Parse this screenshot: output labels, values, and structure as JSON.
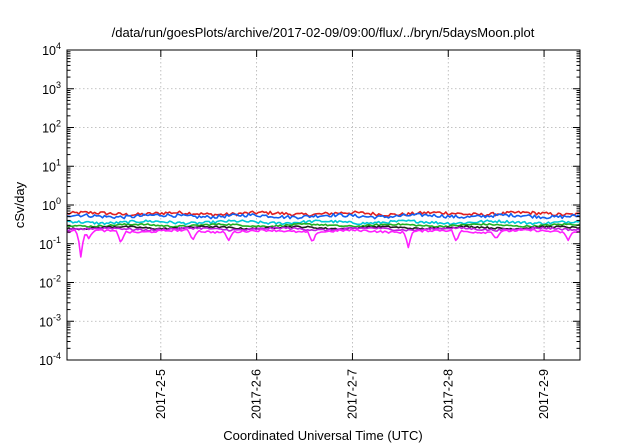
{
  "chart_data": {
    "type": "line",
    "title": "/data/run/goesPlots/archive/2017-02-09/09:00/flux/../bryn/5daysMoon.plot",
    "xlabel": "Coordinated Universal Time (UTC)",
    "ylabel": "cSv/day",
    "y_scale": "log",
    "ylim": [
      0.0001,
      10000
    ],
    "y_ticks": [
      {
        "value": 0.0001,
        "base": "10",
        "exp": "-4"
      },
      {
        "value": 0.001,
        "base": "10",
        "exp": "-3"
      },
      {
        "value": 0.01,
        "base": "10",
        "exp": "-2"
      },
      {
        "value": 0.1,
        "base": "10",
        "exp": "-1"
      },
      {
        "value": 1,
        "base": "10",
        "exp": "0"
      },
      {
        "value": 10,
        "base": "10",
        "exp": "1"
      },
      {
        "value": 100,
        "base": "10",
        "exp": "2"
      },
      {
        "value": 1000,
        "base": "10",
        "exp": "3"
      },
      {
        "value": 10000,
        "base": "10",
        "exp": "4"
      }
    ],
    "xlim": [
      "2017-02-04 00:30",
      "2017-02-09 09:00"
    ],
    "x_ticks": [
      "2017-2-5",
      "2017-2-6",
      "2017-2-7",
      "2017-2-8",
      "2017-2-9"
    ],
    "grid": true,
    "legend": "none",
    "series": [
      {
        "color": "#e02020",
        "level": 0.6,
        "amplitude": 0.1,
        "dips": []
      },
      {
        "color": "#1060f0",
        "level": 0.52,
        "amplitude": 0.1,
        "dips": []
      },
      {
        "color": "#00c8d8",
        "level": 0.36,
        "amplitude": 0.08,
        "dips": []
      },
      {
        "color": "#20b020",
        "level": 0.3,
        "amplitude": 0.05,
        "dips": []
      },
      {
        "color": "#202020",
        "level": 0.26,
        "amplitude": 0.05,
        "dips": []
      },
      {
        "color": "#c020e0",
        "level": 0.24,
        "amplitude": 0.06,
        "dips": []
      },
      {
        "color": "#ff20ff",
        "level": 0.21,
        "amplitude": 0.06,
        "dips": [
          {
            "x": "2017-02-04 04:00",
            "value": 0.04
          },
          {
            "x": "2017-02-04 06:00",
            "value": 0.13
          },
          {
            "x": "2017-02-04 14:00",
            "value": 0.1
          },
          {
            "x": "2017-02-05 08:00",
            "value": 0.12
          },
          {
            "x": "2017-02-05 17:00",
            "value": 0.12
          },
          {
            "x": "2017-02-06 14:00",
            "value": 0.1
          },
          {
            "x": "2017-02-07 14:00",
            "value": 0.08
          },
          {
            "x": "2017-02-08 02:00",
            "value": 0.11
          },
          {
            "x": "2017-02-08 12:00",
            "value": 0.13
          },
          {
            "x": "2017-02-09 06:00",
            "value": 0.12
          }
        ]
      }
    ]
  }
}
